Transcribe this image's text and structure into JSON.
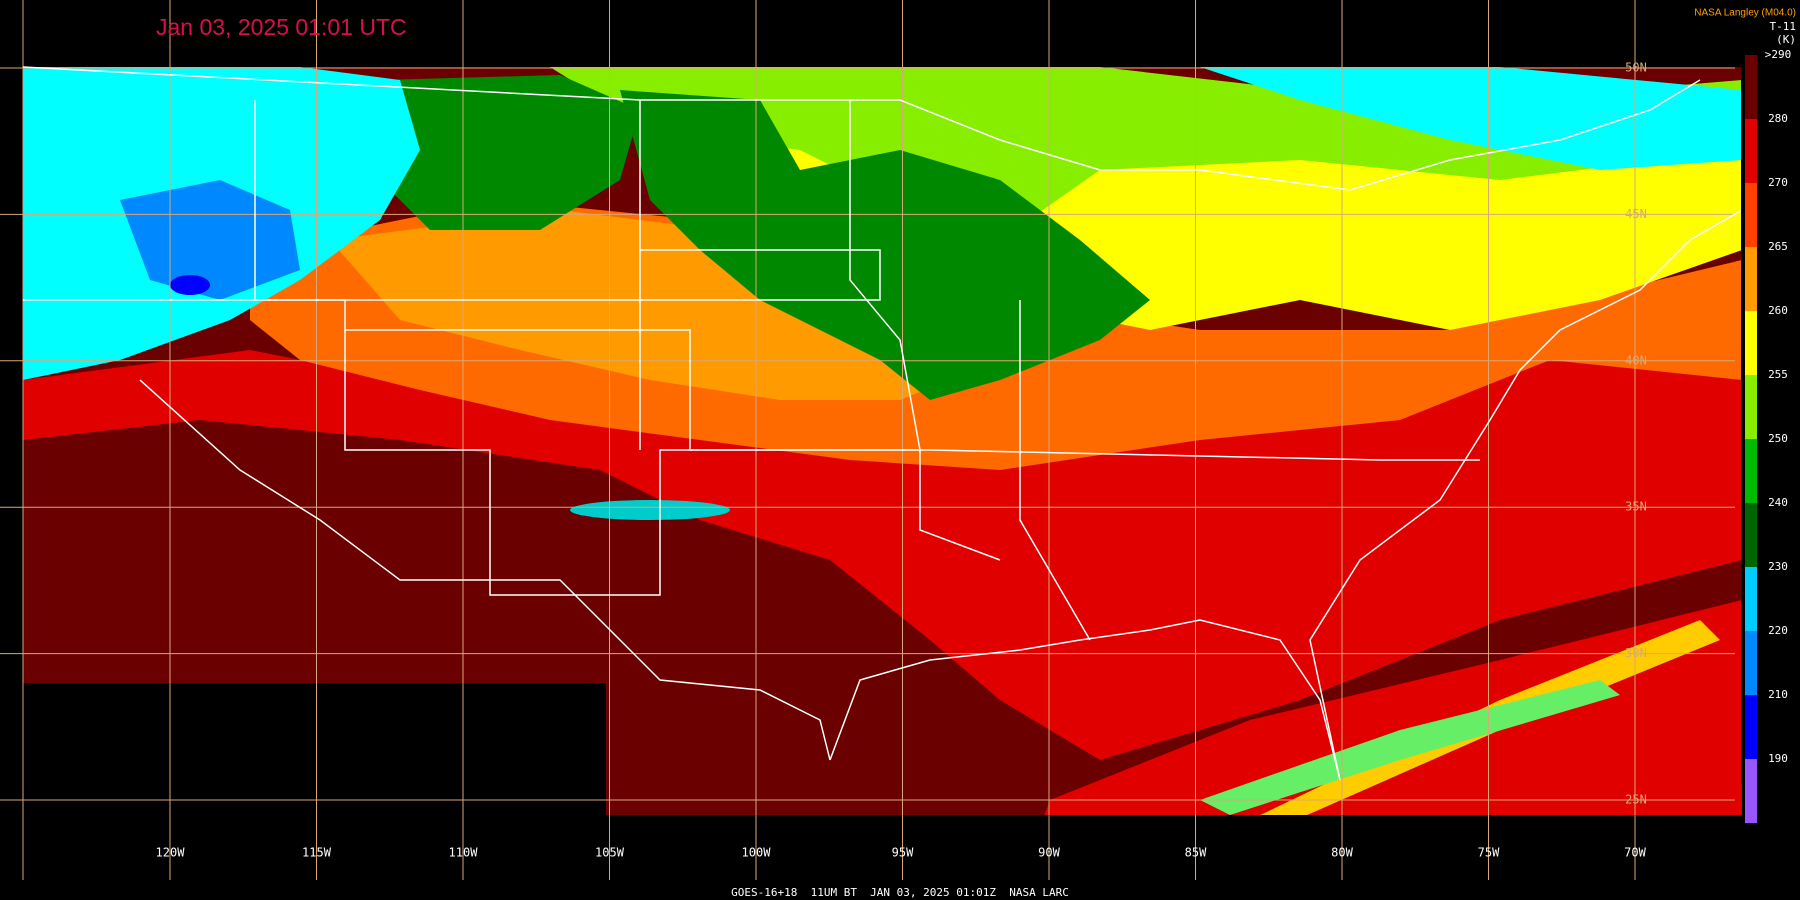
{
  "header": {
    "timestamp": "Jan 03, 2025 01:01 UTC",
    "credit": "NASA Langley (M04.0)"
  },
  "legend": {
    "title": "T-11",
    "units": "(K)",
    "labels": [
      ">290",
      "280",
      "270",
      "265",
      "260",
      "255",
      "250",
      "240",
      "230",
      "220",
      "210",
      "190"
    ]
  },
  "longitudes": [
    "120W",
    "115W",
    "110W",
    "105W",
    "100W",
    "95W",
    "90W",
    "85W",
    "80W",
    "75W",
    "70W"
  ],
  "latitudes": [
    "50N",
    "45N",
    "40N",
    "35N",
    "30N",
    "25N"
  ],
  "footer": "GOES-16+18  11UM BT  JAN 03, 2025 01:01Z  NASA LARC"
}
